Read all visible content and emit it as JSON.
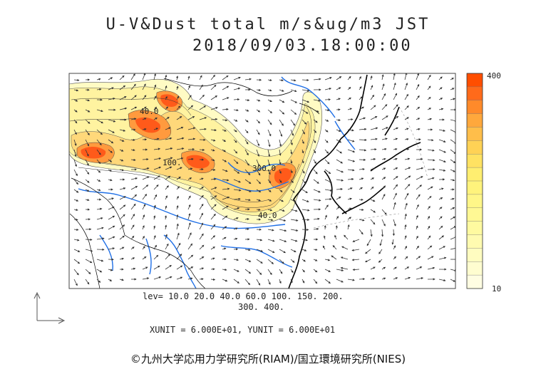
{
  "title": {
    "line1": "U-V&Dust total m/s&ug/m3 JST",
    "line2": "2018/09/03.18:00:00"
  },
  "contour_levels_text": {
    "line1": "lev= 10.0 20.0 40.0 60.0 100. 150. 200.",
    "line2": "300. 400."
  },
  "units_text": "XUNIT = 6.000E+01, YUNIT = 6.000E+01",
  "copyright": "©九州大学応用力学研究所(RIAM)/国立環境研究所(NIES)",
  "colorbar": {
    "max_label": "400",
    "min_label": "10",
    "colors": [
      "#ff4e00",
      "#ff6a1a",
      "#ff8a2a",
      "#ffa83c",
      "#ffbe4a",
      "#ffd255",
      "#ffe262",
      "#ffee70",
      "#fff37c",
      "#fff688",
      "#fff894",
      "#fffaa0",
      "#fffbb0",
      "#fffcc0",
      "#fffdd0",
      "#fffde2"
    ]
  },
  "map_labels": [
    {
      "text": "40.0"
    },
    {
      "text": "100."
    },
    {
      "text": "300.0"
    },
    {
      "text": "40.0"
    }
  ],
  "dust_colors": {
    "low": "#fffbc4",
    "light": "#fff3a0",
    "mid": "#ffd87a",
    "high": "#ff9a3e",
    "peak": "#ff5a1a"
  },
  "river_color": "#1f6fe6",
  "coast_color": "#000000"
}
